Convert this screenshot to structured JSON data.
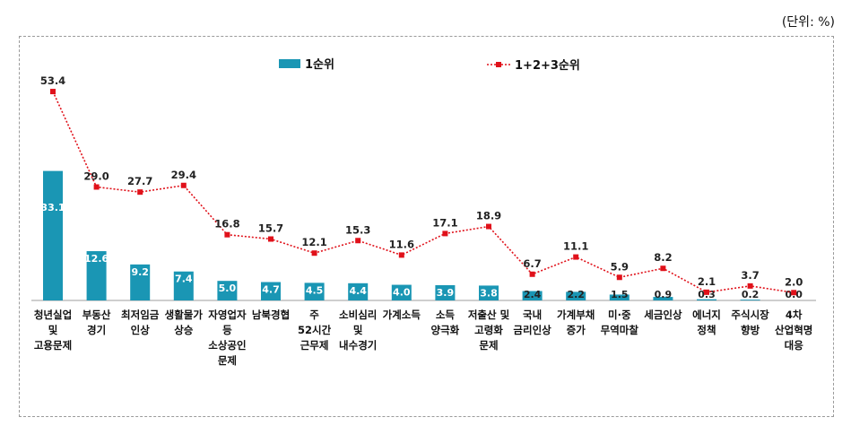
{
  "unit_label": "(단위: %)",
  "chart_data": {
    "type": "bar",
    "categories": [
      [
        "청년실업",
        "및",
        "고용문제"
      ],
      [
        "부동산",
        "경기"
      ],
      [
        "최저임금",
        "인상"
      ],
      [
        "생활물가",
        "상승"
      ],
      [
        "자영업자",
        "등",
        "소상공인",
        "문제"
      ],
      [
        "남북경협"
      ],
      [
        "주",
        "52시간",
        "근무제"
      ],
      [
        "소비심리",
        "및",
        "내수경기"
      ],
      [
        "가계소득"
      ],
      [
        "소득",
        "양극화"
      ],
      [
        "저출산 및",
        "고령화",
        "문제"
      ],
      [
        "국내",
        "금리인상"
      ],
      [
        "가계부채",
        "증가"
      ],
      [
        "미·중",
        "무역마찰"
      ],
      [
        "세금인상"
      ],
      [
        "에너지",
        "정책"
      ],
      [
        "주식시장",
        "향방"
      ],
      [
        "4차",
        "산업혁명",
        "대응"
      ]
    ],
    "series": [
      {
        "name": "1순위",
        "type": "bar",
        "color": "#1a96b4",
        "values": [
          33.1,
          12.6,
          9.2,
          7.4,
          5.0,
          4.7,
          4.5,
          4.4,
          4.0,
          3.9,
          3.8,
          2.4,
          2.2,
          1.5,
          0.9,
          0.3,
          0.2,
          0.0
        ]
      },
      {
        "name": "1+2+3순위",
        "type": "line",
        "color": "#e0111a",
        "values": [
          53.4,
          29.0,
          27.7,
          29.4,
          16.8,
          15.7,
          12.1,
          15.3,
          11.6,
          17.1,
          18.9,
          6.7,
          11.1,
          5.9,
          8.2,
          2.1,
          3.7,
          2.0
        ]
      }
    ],
    "ylim": [
      0,
      58
    ],
    "legend_position": "top-center"
  }
}
